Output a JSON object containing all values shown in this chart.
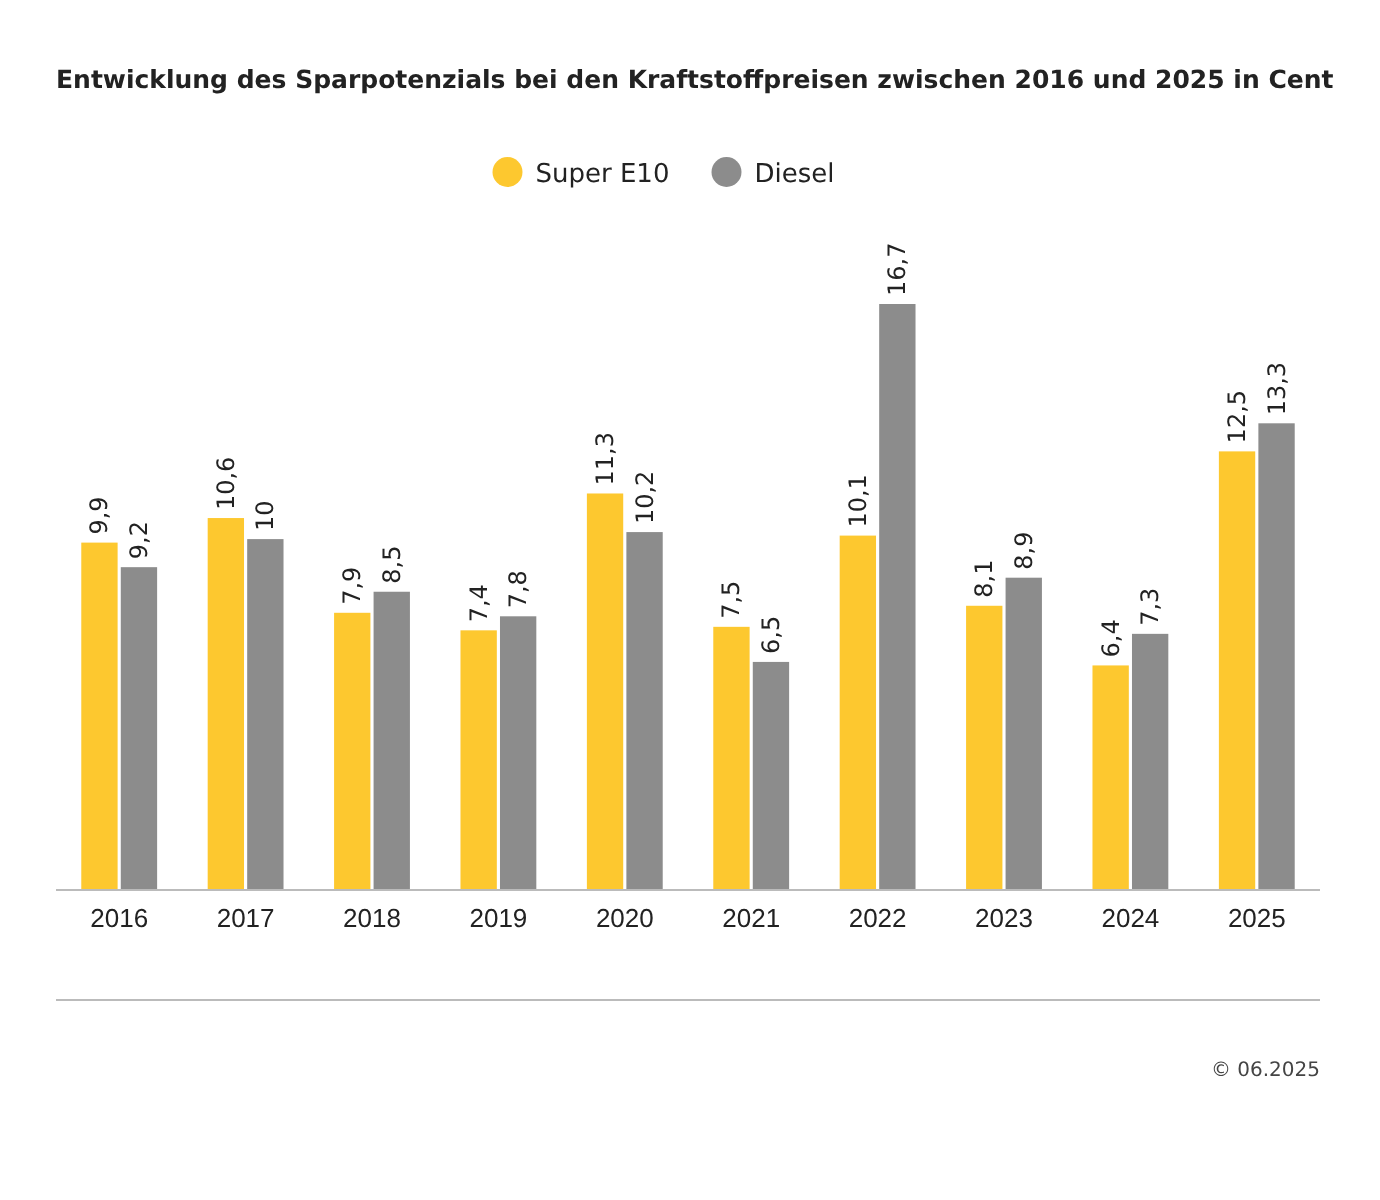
{
  "chart_data": {
    "type": "bar",
    "title": "Entwicklung des Sparpotenzials bei den Kraftstoffpreisen zwischen 2016 und 2025 in Cent",
    "categories": [
      "2016",
      "2017",
      "2018",
      "2019",
      "2020",
      "2021",
      "2022",
      "2023",
      "2024",
      "2025"
    ],
    "series": [
      {
        "name": "Super E10",
        "color": "#fdc82f",
        "values": [
          9.9,
          10.6,
          7.9,
          7.4,
          11.3,
          7.5,
          10.1,
          8.1,
          6.4,
          12.5
        ],
        "value_labels": [
          "9,9",
          "10,6",
          "7,9",
          "7,4",
          "11,3",
          "7,5",
          "10,1",
          "8,1",
          "6,4",
          "12,5"
        ]
      },
      {
        "name": "Diesel",
        "color": "#8c8c8c",
        "values": [
          9.2,
          10,
          8.5,
          7.8,
          10.2,
          6.5,
          16.7,
          8.9,
          7.3,
          13.3
        ],
        "value_labels": [
          "9,2",
          "10",
          "8,5",
          "7,8",
          "10,2",
          "6,5",
          "16,7",
          "8,9",
          "7,3",
          "13,3"
        ]
      }
    ],
    "legend": "top",
    "grid": false,
    "annotations": [
      "© 06.2025"
    ]
  }
}
